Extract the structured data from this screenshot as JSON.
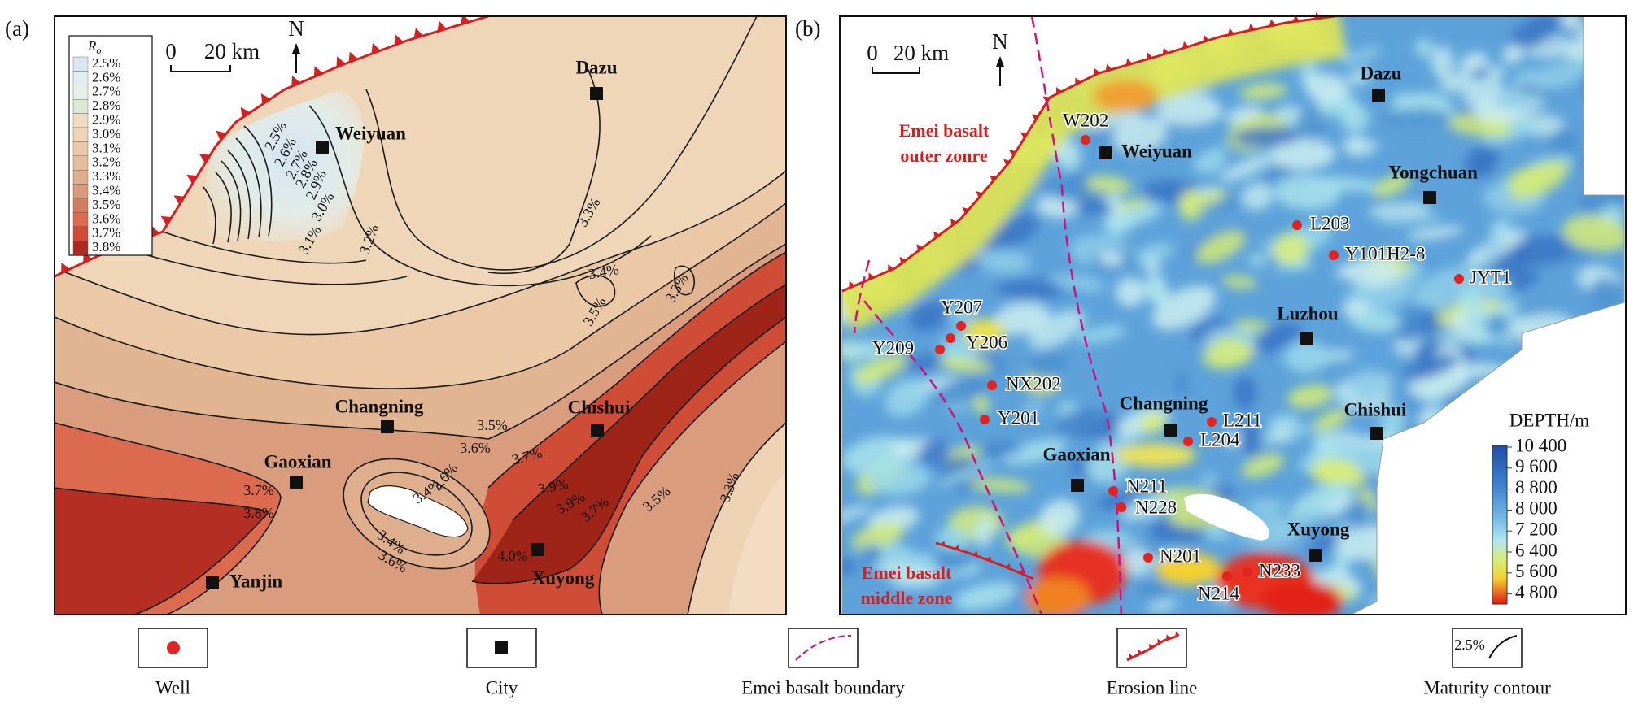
{
  "panel_a": {
    "label": "(a)",
    "legend_title": "R",
    "legend_subscript": "o",
    "legend_entries": [
      "2.5%",
      "2.6%",
      "2.7%",
      "2.8%",
      "2.9%",
      "3.0%",
      "3.1%",
      "3.2%",
      "3.3%",
      "3.4%",
      "3.5%",
      "3.6%",
      "3.7%",
      "3.8%"
    ],
    "scale_bar": {
      "zero": "0",
      "length": "20 km"
    },
    "north": "N",
    "cities": [
      "Weiyuan",
      "Dazu",
      "Changning",
      "Chishui",
      "Gaoxian",
      "Yanjin",
      "Xuyong"
    ],
    "contour_labels": [
      "2.5%",
      "2.6%",
      "2.7%",
      "2.8%",
      "2.9%",
      "3.0%",
      "3.1%",
      "3.2%",
      "3.3%",
      "3.4%",
      "3.5%",
      "3.3%",
      "3.5%",
      "3.6%",
      "3.7%",
      "3.4%",
      "3.6%",
      "3.4%",
      "3.6%",
      "3.9%",
      "3.9%",
      "3.7%",
      "3.5%",
      "3.3%",
      "4.0%",
      "3.7%",
      "3.8%"
    ]
  },
  "panel_b": {
    "label": "(b)",
    "scale_bar": {
      "zero": "0",
      "length": "20 km"
    },
    "north": "N",
    "zones": [
      {
        "lines": [
          "Emei basalt",
          "outer zonre"
        ]
      },
      {
        "lines": [
          "Emei basalt",
          "middle zone"
        ]
      }
    ],
    "cities": [
      "Dazu",
      "Weiyuan",
      "Yongchuan",
      "Luzhou",
      "Changning",
      "Chishui",
      "Gaoxian",
      "Xuyong"
    ],
    "wells": [
      "W202",
      "L203",
      "Y101H2-8",
      "JYT1",
      "Y207",
      "Y206",
      "Y209",
      "NX202",
      "Y201",
      "L211",
      "L204",
      "N211",
      "N228",
      "N201",
      "N233",
      "N214"
    ],
    "depth_legend": {
      "title": "DEPTH/m",
      "ticks": [
        "10 400",
        "9 600",
        "8 800",
        "8 000",
        "7 200",
        "6 400",
        "5 600",
        "4 800"
      ]
    }
  },
  "legend": {
    "items": [
      "Well",
      "City",
      "Emei basalt boundary",
      "Erosion line",
      "Maturity contour"
    ],
    "contour_sample": "2.5%"
  }
}
